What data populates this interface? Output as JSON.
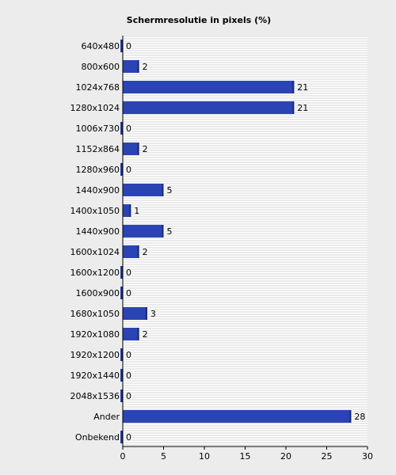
{
  "chart_data": {
    "type": "bar",
    "orientation": "horizontal",
    "title": "Schermresolutie in pixels (%)",
    "xlabel": "",
    "ylabel": "",
    "xlim": [
      0,
      30
    ],
    "x_ticks": [
      0,
      5,
      10,
      15,
      20,
      25,
      30
    ],
    "grid": true,
    "categories": [
      "640x480",
      "800x600",
      "1024x768",
      "1280x1024",
      "1006x730",
      "1152x864",
      "1280x960",
      "1440x900",
      "1400x1050",
      "1440x900",
      "1600x1024",
      "1600x1200",
      "1600x900",
      "1680x1050",
      "1920x1080",
      "1920x1200",
      "1920x1440",
      "2048x1536",
      "Ander",
      "Onbekend"
    ],
    "values": [
      0,
      2,
      21,
      21,
      0,
      2,
      0,
      5,
      1,
      5,
      2,
      0,
      0,
      3,
      2,
      0,
      0,
      0,
      28,
      0
    ],
    "bar_color": "#2b44b4",
    "background_color": "#ececec"
  }
}
